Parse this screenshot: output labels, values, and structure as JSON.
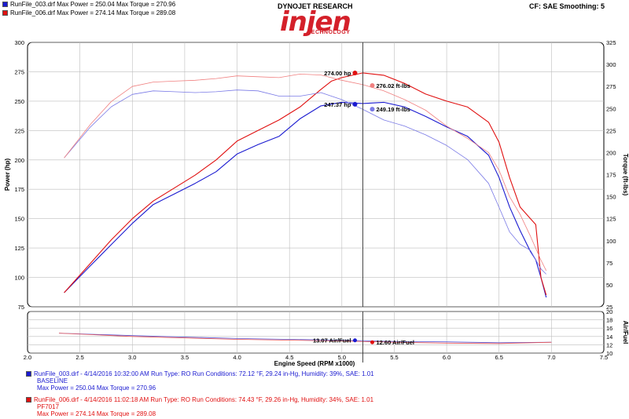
{
  "header": {
    "run1_summary": "RunFile_003.drf Max Power = 250.04   Max Torque = 270.96",
    "run2_summary": "RunFile_006.drf Max Power = 274.14   Max Torque = 289.08",
    "logo_top": "DYNOJET RESEARCH",
    "logo_word": "injen",
    "logo_sub": "TECHNOLOGY",
    "settings": "CF: SAE  Smoothing: 5"
  },
  "footer": {
    "run1_line1": "RunFile_003.drf - 4/14/2016 10:32:00 AM  Run Type: RO  Run Conditions: 72.12 °F, 29.24 in-Hg,  Humidity:  39%, SAE: 1.01",
    "run1_line2": "BASELINE",
    "run1_line3": "Max Power = 250.04  Max Torque = 270.96",
    "run2_line1": "RunFile_006.drf - 4/14/2016 11:02:18 AM  Run Type: RO  Run Conditions: 74.43 °F, 29.26 in-Hg,  Humidity:  34%, SAE: 1.01",
    "run2_line2": "PF7017",
    "run2_line3": "Max Power = 274.14  Max Torque = 289.08"
  },
  "colors": {
    "run1": "#1a1ad0",
    "run2": "#e01010",
    "run1_light": "#7a7ae6",
    "run2_light": "#f08080"
  },
  "chart_data": [
    {
      "type": "line",
      "xlabel": "Engine Speed (RPM x1000)",
      "ylabel": "Power (hp)",
      "y2label": "Torque (ft-lbs)",
      "xlim": [
        2.0,
        7.5
      ],
      "ylim": [
        75,
        300
      ],
      "y2lim": [
        25,
        325
      ],
      "x_ticks": [
        "2.0",
        "2.5",
        "3.0",
        "3.5",
        "4.0",
        "4.5",
        "5.0",
        "5.5",
        "6.0",
        "6.5",
        "7.0",
        "7.5"
      ],
      "y_ticks": [
        "75",
        "100",
        "125",
        "150",
        "175",
        "200",
        "225",
        "250",
        "275",
        "300"
      ],
      "y2_ticks": [
        "25",
        "50",
        "75",
        "100",
        "125",
        "150",
        "175",
        "200",
        "225",
        "250",
        "275",
        "300",
        "325"
      ],
      "grid": true,
      "cursor_x": 5.2,
      "series": [
        {
          "name": "RunFile_003.drf",
          "measure": "power",
          "axis": "left",
          "color": "#1a1ad0",
          "width": 1.1,
          "x": [
            2.35,
            2.6,
            2.8,
            3.0,
            3.2,
            3.4,
            3.6,
            3.8,
            4.0,
            4.2,
            4.4,
            4.6,
            4.8,
            5.0,
            5.2,
            5.4,
            5.6,
            5.8,
            6.0,
            6.2,
            6.4,
            6.5,
            6.6,
            6.7,
            6.8,
            6.85,
            6.9,
            6.95
          ],
          "y": [
            87,
            110,
            128,
            146,
            162,
            171,
            180,
            190,
            205,
            213,
            220,
            235,
            246,
            249,
            248,
            249,
            245,
            237,
            228,
            220,
            204,
            185,
            160,
            140,
            122,
            115,
            100,
            83
          ]
        },
        {
          "name": "RunFile_006.drf",
          "measure": "power",
          "axis": "left",
          "color": "#e01010",
          "width": 1.1,
          "x": [
            2.35,
            2.6,
            2.8,
            3.0,
            3.2,
            3.4,
            3.6,
            3.8,
            4.0,
            4.2,
            4.4,
            4.6,
            4.8,
            4.9,
            5.0,
            5.2,
            5.4,
            5.6,
            5.8,
            6.0,
            6.2,
            6.4,
            6.5,
            6.6,
            6.7,
            6.8,
            6.85,
            6.9,
            6.95
          ],
          "y": [
            87,
            112,
            132,
            150,
            165,
            176,
            187,
            200,
            216,
            225,
            234,
            245,
            260,
            267,
            270,
            274,
            272,
            265,
            256,
            250,
            245,
            232,
            215,
            185,
            160,
            150,
            145,
            100,
            85
          ]
        },
        {
          "name": "RunFile_003.drf",
          "measure": "torque",
          "axis": "right",
          "color": "#7a7ae6",
          "width": 0.8,
          "x": [
            2.35,
            2.6,
            2.8,
            3.0,
            3.2,
            3.4,
            3.6,
            3.8,
            4.0,
            4.2,
            4.4,
            4.6,
            4.8,
            5.0,
            5.2,
            5.4,
            5.6,
            5.8,
            6.0,
            6.2,
            6.4,
            6.5,
            6.6,
            6.7,
            6.8,
            6.9,
            6.95
          ],
          "y": [
            194,
            229,
            252,
            266,
            270,
            269,
            268,
            269,
            271,
            270,
            264,
            264,
            268,
            260,
            249,
            237,
            230,
            220,
            208,
            192,
            165,
            138,
            110,
            96,
            89,
            68,
            62
          ]
        },
        {
          "name": "RunFile_006.drf",
          "measure": "torque",
          "axis": "right",
          "color": "#f08080",
          "width": 0.8,
          "x": [
            2.35,
            2.6,
            2.8,
            3.0,
            3.2,
            3.4,
            3.6,
            3.8,
            4.0,
            4.2,
            4.4,
            4.6,
            4.8,
            5.0,
            5.2,
            5.4,
            5.6,
            5.8,
            6.0,
            6.2,
            6.4,
            6.5,
            6.6,
            6.7,
            6.8,
            6.9,
            6.95
          ],
          "y": [
            194,
            232,
            258,
            275,
            280,
            281,
            282,
            284,
            287,
            286,
            285,
            289,
            288,
            282,
            277,
            270,
            260,
            248,
            230,
            216,
            200,
            180,
            150,
            130,
            105,
            78,
            66
          ]
        }
      ],
      "cursor_labels": [
        {
          "text": "274.00 hp",
          "value": 274.0,
          "axis": "left",
          "color": "#e01010",
          "side": "left"
        },
        {
          "text": "247.37 hp",
          "value": 247.37,
          "axis": "left",
          "color": "#1a1ad0",
          "side": "left"
        },
        {
          "text": "276.02 ft-lbs",
          "value": 276.02,
          "axis": "right",
          "color": "#f08080",
          "side": "right"
        },
        {
          "text": "249.19 ft-lbs",
          "value": 249.19,
          "axis": "right",
          "color": "#7a7ae6",
          "side": "right"
        }
      ]
    },
    {
      "type": "line",
      "ylabel": "Air/Fuel",
      "xlim": [
        2.0,
        7.5
      ],
      "ylim": [
        10,
        20
      ],
      "y_ticks": [
        "10",
        "12",
        "14",
        "16",
        "18",
        "20"
      ],
      "grid": true,
      "series": [
        {
          "name": "RunFile_003.drf",
          "color": "#5b5bd8",
          "x": [
            2.3,
            3.0,
            4.0,
            5.0,
            5.5,
            6.0,
            6.5,
            7.0
          ],
          "y": [
            14.8,
            14.2,
            13.5,
            13.1,
            12.8,
            12.7,
            12.5,
            12.6
          ]
        },
        {
          "name": "RunFile_006.drf",
          "color": "#e85555",
          "x": [
            2.3,
            3.0,
            4.0,
            5.0,
            5.5,
            6.0,
            6.5,
            7.0
          ],
          "y": [
            14.8,
            14.0,
            13.3,
            12.9,
            12.6,
            12.4,
            12.3,
            12.6
          ]
        }
      ],
      "cursor_labels": [
        {
          "text": "13.07 Air/Fuel",
          "value": 13.07,
          "color": "#1a1ad0",
          "side": "left"
        },
        {
          "text": "12.60 Air/Fuel",
          "value": 12.6,
          "color": "#e01010",
          "side": "right"
        }
      ]
    }
  ]
}
